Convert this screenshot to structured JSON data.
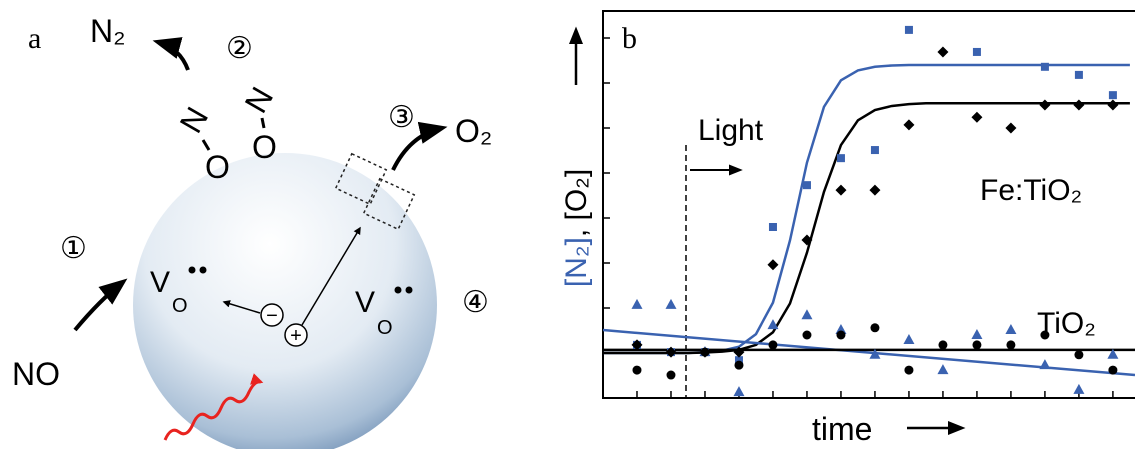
{
  "panel_a": {
    "label": "a",
    "n2": "N₂",
    "step2": "②",
    "step3": "③",
    "o2": "O₂",
    "step1": "①",
    "no": "NO",
    "step4": "④",
    "molecule": [
      "N",
      "O",
      "N",
      "O"
    ],
    "vacancy": {
      "v": "V",
      "sub": "O"
    },
    "electron": "−",
    "hole": "+"
  },
  "chart_data": {
    "type": "scatter",
    "label": "b",
    "x_label": "time",
    "y_label_parts": [
      "[N₂]",
      ", [O₂]"
    ],
    "y_label_colors": [
      "#3a62b0",
      "#000000"
    ],
    "annotations": [
      "Light",
      "Fe:TiO₂",
      "TiO₂"
    ],
    "xlim": [
      0,
      15.65
    ],
    "ylim": [
      0,
      8.6
    ],
    "xticks": [
      1,
      2,
      3,
      4,
      5,
      6,
      7,
      8,
      9,
      10,
      11,
      12,
      13,
      14,
      15
    ],
    "yticks": [
      1,
      2,
      3,
      4,
      5,
      6,
      7,
      8
    ],
    "series": [
      {
        "marker": "square",
        "color": "#3a62b0",
        "x": [
          1,
          2,
          3,
          4,
          5,
          6,
          7,
          8,
          9,
          11,
          13,
          14,
          15
        ],
        "values": [
          1.18,
          1.02,
          1.02,
          0.84,
          3.8,
          4.73,
          5.33,
          5.51,
          8.18,
          7.69,
          7.36,
          7.18,
          6.73
        ]
      },
      {
        "marker": "diamond",
        "color": "#000000",
        "x": [
          1,
          2,
          3,
          4,
          5,
          6,
          7,
          8,
          9,
          10,
          11,
          12,
          13,
          14,
          15
        ],
        "values": [
          1.18,
          1.02,
          1.02,
          1.02,
          2.96,
          3.51,
          4.62,
          4.62,
          6.07,
          7.69,
          6.24,
          6.0,
          6.51,
          6.51,
          6.51
        ]
      },
      {
        "marker": "triangle",
        "color": "#3a62b0",
        "x": [
          1,
          2,
          3,
          4,
          5,
          6,
          7,
          8,
          9,
          10,
          11,
          12,
          13,
          14,
          15
        ],
        "values": [
          2.07,
          2.07,
          1.02,
          0.13,
          1.62,
          1.84,
          1.51,
          0.96,
          1.29,
          0.62,
          1.4,
          1.51,
          0.73,
          0.18,
          0.96
        ]
      },
      {
        "marker": "circle",
        "color": "#000000",
        "x": [
          1,
          2,
          3,
          4,
          5,
          6,
          7,
          8,
          9,
          10,
          11,
          12,
          13,
          14,
          15
        ],
        "values": [
          0.62,
          0.51,
          1.02,
          0.73,
          1.18,
          1.4,
          1.4,
          1.56,
          0.62,
          1.18,
          1.18,
          1.18,
          1.4,
          0.96,
          0.62
        ]
      },
      {
        "marker": "line",
        "color": "#3a62b0",
        "x": [
          0,
          0.5,
          1,
          1.5,
          2,
          2.5,
          3,
          3.5,
          4,
          4.5,
          5,
          5.5,
          6,
          6.5,
          7,
          7.5,
          8,
          8.5,
          9,
          9.5,
          10,
          10.5,
          11,
          11.5,
          12,
          12.5,
          13,
          13.5,
          14,
          14.5,
          15,
          15.5
        ],
        "values": [
          1.0,
          1.0,
          1.0,
          1.0,
          1.0,
          1.0,
          1.02,
          1.05,
          1.14,
          1.42,
          2.12,
          3.5,
          5.23,
          6.47,
          7.06,
          7.28,
          7.36,
          7.39,
          7.4,
          7.4,
          7.4,
          7.4,
          7.4,
          7.4,
          7.4,
          7.4,
          7.4,
          7.4,
          7.4,
          7.4,
          7.4,
          7.4
        ]
      },
      {
        "marker": "line",
        "color": "#000000",
        "x": [
          0,
          0.5,
          1,
          1.5,
          2,
          2.5,
          3,
          3.5,
          4,
          4.5,
          5,
          5.5,
          6,
          6.5,
          7,
          7.5,
          8,
          8.5,
          9,
          9.5,
          10,
          10.5,
          11,
          11.5,
          12,
          12.5,
          13,
          13.5,
          14,
          14.5,
          15,
          15.5
        ],
        "values": [
          1.0,
          1.0,
          1.0,
          1.0,
          1.0,
          1.0,
          1.01,
          1.03,
          1.07,
          1.18,
          1.46,
          2.1,
          3.23,
          4.58,
          5.62,
          6.17,
          6.4,
          6.49,
          6.53,
          6.55,
          6.55,
          6.55,
          6.55,
          6.55,
          6.55,
          6.55,
          6.55,
          6.55,
          6.55,
          6.55,
          6.55,
          6.55
        ]
      },
      {
        "marker": "line",
        "color": "#3a62b0",
        "x": [
          0,
          15.65
        ],
        "values": [
          1.51,
          0.51
        ]
      },
      {
        "marker": "line",
        "color": "#000000",
        "x": [
          0,
          15.65
        ],
        "values": [
          1.07,
          1.07
        ]
      }
    ]
  }
}
